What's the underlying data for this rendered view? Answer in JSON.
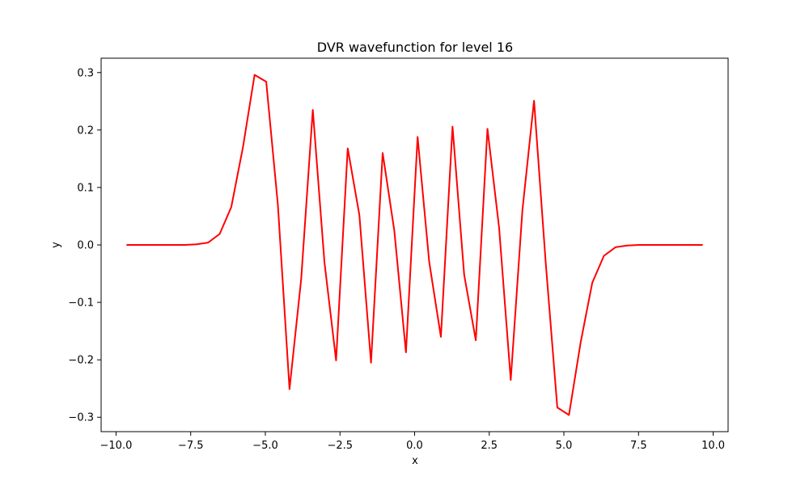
{
  "chart_data": {
    "type": "line",
    "title": "DVR wavefunction for level 16",
    "xlabel": "x",
    "ylabel": "y",
    "xlim": [
      -10.5,
      10.5
    ],
    "ylim": [
      -0.325,
      0.325
    ],
    "x_ticks": [
      -10.0,
      -7.5,
      -5.0,
      -2.5,
      0.0,
      2.5,
      5.0,
      7.5,
      10.0
    ],
    "x_tick_labels": [
      "−10.0",
      "−7.5",
      "−5.0",
      "−2.5",
      "0.0",
      "2.5",
      "5.0",
      "7.5",
      "10.0"
    ],
    "y_ticks": [
      -0.3,
      -0.2,
      -0.1,
      0.0,
      0.1,
      0.2,
      0.3
    ],
    "y_tick_labels": [
      "−0.3",
      "−0.2",
      "−0.1",
      "0.0",
      "0.1",
      "0.2",
      "0.3"
    ],
    "grid": false,
    "series": [
      {
        "color": "#ff0000",
        "x": [
          -9.65,
          -9.26,
          -8.87,
          -8.48,
          -8.09,
          -7.7,
          -7.31,
          -6.92,
          -6.53,
          -6.14,
          -5.75,
          -5.36,
          -4.97,
          -4.58,
          -4.19,
          -3.8,
          -3.41,
          -3.02,
          -2.63,
          -2.24,
          -1.85,
          -1.46,
          -1.07,
          -0.68,
          -0.29,
          0.1,
          0.49,
          0.88,
          1.27,
          1.66,
          2.05,
          2.44,
          2.83,
          3.22,
          3.61,
          4.0,
          4.39,
          4.78,
          5.17,
          5.56,
          5.95,
          6.34,
          6.73,
          7.12,
          7.51,
          7.9,
          8.29,
          8.68,
          9.07,
          9.46,
          9.65
        ],
        "y": [
          0.0,
          0.0,
          0.0,
          0.0,
          0.0,
          0.0,
          0.001,
          0.004,
          0.019,
          0.066,
          0.17,
          0.296,
          0.284,
          0.07,
          -0.251,
          -0.06,
          0.235,
          -0.03,
          -0.201,
          0.168,
          0.052,
          -0.205,
          0.16,
          0.025,
          -0.187,
          0.188,
          -0.03,
          -0.16,
          0.206,
          -0.052,
          -0.166,
          0.202,
          0.03,
          -0.235,
          0.06,
          0.251,
          -0.03,
          -0.283,
          -0.296,
          -0.17,
          -0.066,
          -0.019,
          -0.004,
          -0.001,
          0.0,
          0.0,
          0.0,
          0.0,
          0.0,
          0.0,
          0.0
        ]
      }
    ]
  }
}
